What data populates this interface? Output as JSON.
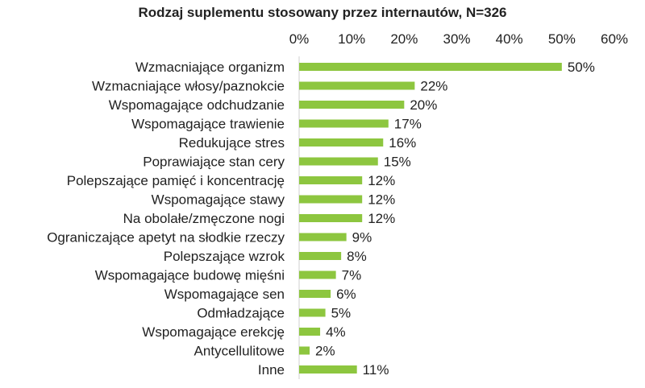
{
  "chart_data": {
    "type": "bar",
    "orientation": "horizontal",
    "title": "Rodzaj suplementu stosowany przez internautów, N=326",
    "xlabel": "",
    "ylabel": "",
    "xlim": [
      0,
      60
    ],
    "x_ticks": [
      "0%",
      "10%",
      "20%",
      "30%",
      "40%",
      "50%",
      "60%"
    ],
    "x_axis_position": "top",
    "grid": false,
    "bar_color": "#8dc63f",
    "categories": [
      "Wzmacniające organizm",
      "Wzmacniające włosy/paznokcie",
      "Wspomagające odchudzanie",
      "Wspomagające trawienie",
      "Redukujące stres",
      "Poprawiające stan cery",
      "Polepszające pamięć i koncentrację",
      "Wspomagające stawy",
      "Na obolałe/zmęczone nogi",
      "Ograniczające apetyt na słodkie rzeczy",
      "Polepszające wzrok",
      "Wspomagające budowę mięśni",
      "Wspomagające sen",
      "Odmładzające",
      "Wspomagające erekcję",
      "Antycellulitowe",
      "Inne"
    ],
    "values": [
      50,
      22,
      20,
      17,
      16,
      15,
      12,
      12,
      12,
      9,
      8,
      7,
      6,
      5,
      4,
      2,
      11
    ],
    "value_labels": [
      "50%",
      "22%",
      "20%",
      "17%",
      "16%",
      "15%",
      "12%",
      "12%",
      "12%",
      "9%",
      "8%",
      "7%",
      "6%",
      "5%",
      "4%",
      "2%",
      "11%"
    ]
  }
}
